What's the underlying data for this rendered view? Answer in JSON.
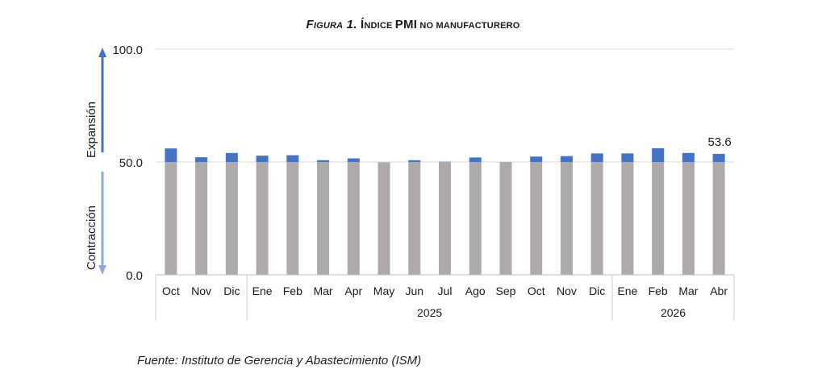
{
  "title": {
    "fig_italic_big": "F",
    "fig_italic_small": "IGURA",
    "fig_num": " 1. ",
    "t1_big": "Í",
    "t1_small": "NDICE ",
    "t2_big": "PMI",
    "t3_small": " NO MANUFACTURERO"
  },
  "source": "Fuente: Instituto de Gerencia y Abastecimiento (ISM)",
  "chart_data": {
    "type": "bar",
    "title": "Figura 1. Índice PMI no manufacturero",
    "categories": [
      "Oct",
      "Nov",
      "Dic",
      "Ene",
      "Feb",
      "Mar",
      "Apr",
      "May",
      "Jun",
      "Jul",
      "Ago",
      "Sep",
      "Oct",
      "Nov",
      "Dic",
      "Ene",
      "Feb",
      "Mar",
      "Abr"
    ],
    "year_groups": [
      {
        "label": "",
        "start": 0,
        "end": 2
      },
      {
        "label": "2025",
        "start": 3,
        "end": 14
      },
      {
        "label": "2026",
        "start": 15,
        "end": 18
      }
    ],
    "values": [
      56.0,
      52.1,
      54.0,
      52.8,
      53.0,
      50.8,
      51.6,
      49.9,
      50.8,
      50.1,
      52.0,
      50.0,
      52.4,
      52.6,
      53.8,
      53.8,
      56.1,
      54.0,
      53.6
    ],
    "baseline": 50,
    "ylim": [
      0,
      100
    ],
    "yticks": [
      "0.0",
      "50.0",
      "100.0"
    ],
    "last_value_label": "53.6",
    "axis_notes": {
      "upper": "Expansión",
      "lower": "Contracción"
    },
    "colors": {
      "base": "#aeaaaa",
      "expansion": "#4472c4",
      "arrow_up": "#4472c4",
      "arrow_down": "#8faadc",
      "grid": "#d9d9d9"
    },
    "grid": true
  }
}
